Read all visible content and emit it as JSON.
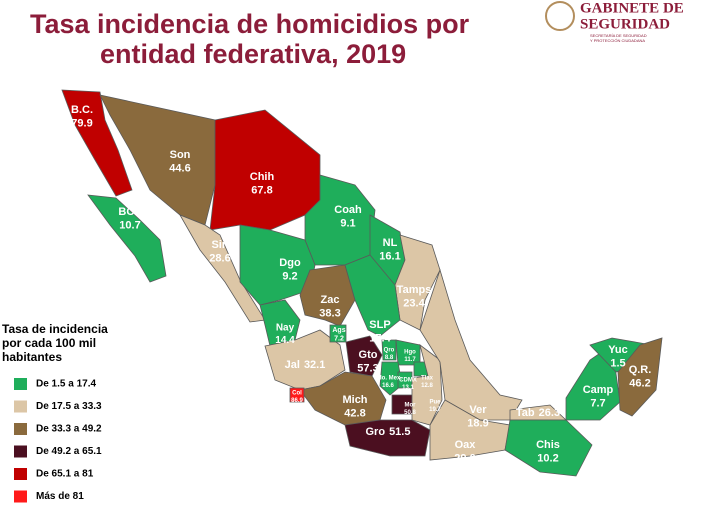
{
  "header": {
    "title_lines": [
      "Tasa incidencia de homicidios por",
      "entidad federativa, 2019"
    ],
    "logo": {
      "name_lines": [
        "GABINETE DE",
        "SEGURIDAD"
      ],
      "sub_lines": [
        "SECRETARÍA DE SEGURIDAD",
        "Y PROTECCIÓN CIUDADANA"
      ]
    }
  },
  "legend": {
    "title_lines": [
      "Tasa de incidencia",
      "por cada 100 mil",
      "habitantes"
    ],
    "items": [
      {
        "label": "De 1.5 a 17.4",
        "color": "#1fae5b"
      },
      {
        "label": "De 17.5 a 33.3",
        "color": "#dcc6a6"
      },
      {
        "label": "De 33.3 a 49.2",
        "color": "#8a6a3d"
      },
      {
        "label": "De 49.2 a 65.1",
        "color": "#4b0f20"
      },
      {
        "label": "De 65.1 a 81",
        "color": "#c00000"
      },
      {
        "label": "Más de 81",
        "color": "#ff1a1a"
      }
    ]
  },
  "states": [
    {
      "name": "B.C.",
      "value": "79.9",
      "color": "#c00000"
    },
    {
      "name": "BCS",
      "value": "10.7",
      "color": "#1fae5b"
    },
    {
      "name": "Son",
      "value": "44.6",
      "color": "#8a6a3d"
    },
    {
      "name": "Chih",
      "value": "67.8",
      "color": "#c00000"
    },
    {
      "name": "Coah",
      "value": "9.1",
      "color": "#1fae5b"
    },
    {
      "name": "NL",
      "value": "16.1",
      "color": "#1fae5b"
    },
    {
      "name": "Tamps",
      "value": "23.4",
      "color": "#dcc6a6"
    },
    {
      "name": "Sin",
      "value": "28.6",
      "color": "#dcc6a6"
    },
    {
      "name": "Dgo",
      "value": "9.2",
      "color": "#1fae5b"
    },
    {
      "name": "Zac",
      "value": "38.3",
      "color": "#8a6a3d"
    },
    {
      "name": "SLP",
      "value": "17.4",
      "color": "#1fae5b"
    },
    {
      "name": "Nay",
      "value": "14.4",
      "color": "#1fae5b"
    },
    {
      "name": "Jal",
      "value": "32.1",
      "color": "#dcc6a6"
    },
    {
      "name": "Ags",
      "value": "7.2",
      "color": "#1fae5b"
    },
    {
      "name": "Gto",
      "value": "57.3",
      "color": "#4b0f20"
    },
    {
      "name": "Qro",
      "value": "8.8",
      "color": "#1fae5b"
    },
    {
      "name": "Hgo",
      "value": "11.7",
      "color": "#1fae5b"
    },
    {
      "name": "Mich",
      "value": "42.8",
      "color": "#8a6a3d"
    },
    {
      "name": "Col",
      "value": "86.9",
      "color": "#ff1a1a"
    },
    {
      "name": "Edo. Mex.",
      "value": "16.6",
      "color": "#1fae5b"
    },
    {
      "name": "CDMX",
      "value": "13.1",
      "color": "#1fae5b"
    },
    {
      "name": "Mor",
      "value": "50.8",
      "color": "#4b0f20"
    },
    {
      "name": "Tlax",
      "value": "12.8",
      "color": "#1fae5b"
    },
    {
      "name": "Pue",
      "value": "19.7",
      "color": "#dcc6a6"
    },
    {
      "name": "Gro",
      "value": "51.5",
      "color": "#4b0f20"
    },
    {
      "name": "Ver",
      "value": "18.9",
      "color": "#dcc6a6"
    },
    {
      "name": "Oax",
      "value": "29.0",
      "color": "#dcc6a6"
    },
    {
      "name": "Tab",
      "value": "26.3",
      "color": "#dcc6a6"
    },
    {
      "name": "Chis",
      "value": "10.2",
      "color": "#1fae5b"
    },
    {
      "name": "Camp",
      "value": "7.7",
      "color": "#1fae5b"
    },
    {
      "name": "Yuc",
      "value": "1.5",
      "color": "#1fae5b"
    },
    {
      "name": "Q.R.",
      "value": "46.2",
      "color": "#8a6a3d"
    }
  ]
}
